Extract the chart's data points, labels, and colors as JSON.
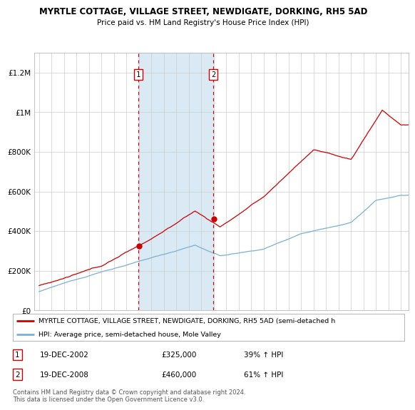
{
  "title": "MYRTLE COTTAGE, VILLAGE STREET, NEWDIGATE, DORKING, RH5 5AD",
  "subtitle": "Price paid vs. HM Land Registry's House Price Index (HPI)",
  "ylim": [
    0,
    1300000
  ],
  "yticks": [
    0,
    200000,
    400000,
    600000,
    800000,
    1000000,
    1200000
  ],
  "ytick_labels": [
    "£0",
    "£200K",
    "£400K",
    "£600K",
    "£800K",
    "£1M",
    "£1.2M"
  ],
  "red_line_color": "#cc0000",
  "blue_line_color": "#7ab0d4",
  "shade_color": "#daeaf5",
  "dashed_line_color": "#cc0000",
  "marker_color": "#cc0000",
  "purchase_1": {
    "date_num": 2002.96,
    "price": 325000,
    "label": "1",
    "date_str": "19-DEC-2002",
    "pct": "39% ↑ HPI"
  },
  "purchase_2": {
    "date_num": 2008.96,
    "price": 460000,
    "label": "2",
    "date_str": "19-DEC-2008",
    "pct": "61% ↑ HPI"
  },
  "legend_red": "MYRTLE COTTAGE, VILLAGE STREET, NEWDIGATE, DORKING, RH5 5AD (semi-detached h",
  "legend_blue": "HPI: Average price, semi-detached house, Mole Valley",
  "footer": "Contains HM Land Registry data © Crown copyright and database right 2024.\nThis data is licensed under the Open Government Licence v3.0.",
  "grid_color": "#cccccc",
  "bg_color": "#ffffff",
  "plot_bg_color": "#ffffff"
}
